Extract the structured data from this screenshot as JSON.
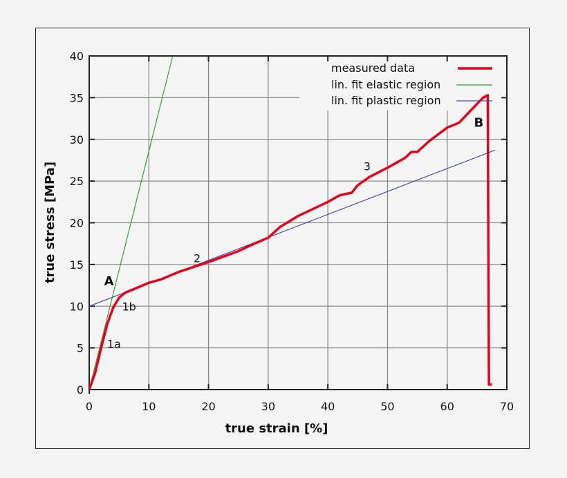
{
  "chart_data": {
    "type": "line",
    "title": "",
    "xlabel": "true strain [%]",
    "ylabel": "true stress [MPa]",
    "xlim": [
      0,
      70
    ],
    "ylim": [
      0,
      40
    ],
    "xticks": [
      0,
      10,
      20,
      30,
      40,
      50,
      60,
      70
    ],
    "yticks": [
      0,
      5,
      10,
      15,
      20,
      25,
      30,
      35,
      40
    ],
    "grid": true,
    "legend_position": "upper right",
    "series": [
      {
        "name": "measured data",
        "color": "#e3001b",
        "style": "thick solid",
        "x": [
          0,
          1,
          2,
          3,
          4,
          5,
          6,
          8,
          10,
          12,
          15,
          20,
          25,
          28,
          30,
          32,
          35,
          40,
          42,
          44,
          45,
          47,
          50,
          53,
          54,
          55,
          57,
          60,
          62,
          64,
          66,
          66.8,
          67,
          67.5
        ],
        "y": [
          0,
          2,
          5,
          7.8,
          9.8,
          11,
          11.6,
          12.2,
          12.8,
          13.2,
          14.1,
          15.3,
          16.6,
          17.6,
          18.2,
          19.5,
          20.8,
          22.5,
          23.3,
          23.6,
          24.5,
          25.5,
          26.6,
          27.8,
          28.5,
          28.5,
          29.8,
          31.4,
          32,
          33.5,
          35,
          35.3,
          0.6,
          0.6
        ]
      },
      {
        "name": "lin. fit elastic region",
        "color": "#3a9a3a",
        "style": "thin solid",
        "x": [
          0,
          14
        ],
        "y": [
          0,
          40
        ]
      },
      {
        "name": "lin. fit plastic region",
        "color": "#4a4aaa",
        "style": "thin solid",
        "x": [
          0,
          68
        ],
        "y": [
          10,
          28.7
        ]
      }
    ],
    "annotations": [
      {
        "text": "A",
        "x": 2.5,
        "y": 12.5,
        "bold": true
      },
      {
        "text": "1a",
        "x": 3,
        "y": 5
      },
      {
        "text": "1b",
        "x": 5.5,
        "y": 9.5
      },
      {
        "text": "2",
        "x": 17.5,
        "y": 15.3
      },
      {
        "text": "3",
        "x": 46,
        "y": 26.3
      },
      {
        "text": "B",
        "x": 64.5,
        "y": 31.5,
        "bold": true
      }
    ]
  },
  "labels": {
    "xlabel": "true strain [%]",
    "ylabel": "true stress [MPa]",
    "xticks": [
      "0",
      "10",
      "20",
      "30",
      "40",
      "50",
      "60",
      "70"
    ],
    "yticks": [
      "0",
      "5",
      "10",
      "15",
      "20",
      "25",
      "30",
      "35",
      "40"
    ],
    "legend": [
      "measured data",
      "lin. fit elastic region",
      "lin. fit plastic region"
    ],
    "annotations": [
      "A",
      "1a",
      "1b",
      "2",
      "3",
      "B"
    ]
  }
}
